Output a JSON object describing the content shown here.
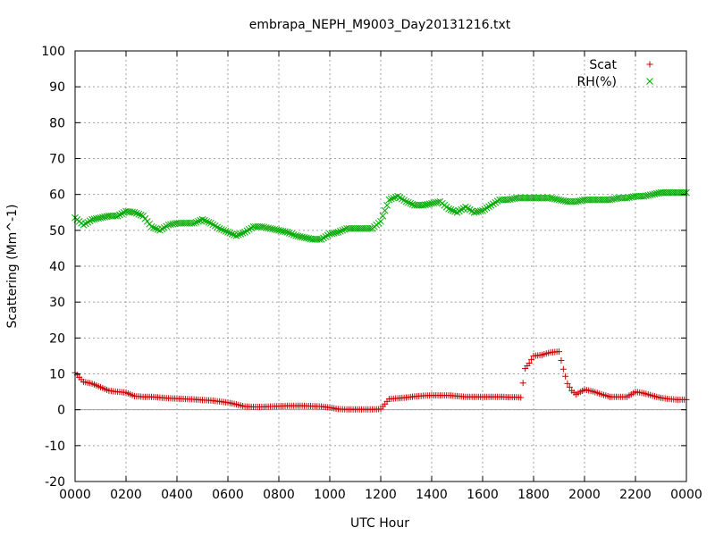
{
  "chart_data": {
    "type": "scatter",
    "title": "embrapa_NEPH_M9003_Day20131216.txt",
    "xlabel": "UTC Hour",
    "ylabel": "Scattering (Mm^-1)",
    "xlim": [
      0,
      24
    ],
    "ylim": [
      -20,
      100
    ],
    "x_ticks": [
      0,
      2,
      4,
      6,
      8,
      10,
      12,
      14,
      16,
      18,
      20,
      22,
      24
    ],
    "x_tick_labels": [
      "0000",
      "0200",
      "0400",
      "0600",
      "0800",
      "1000",
      "1200",
      "1400",
      "1600",
      "1800",
      "2000",
      "2200",
      "0000"
    ],
    "y_ticks": [
      -20,
      -10,
      0,
      10,
      20,
      30,
      40,
      50,
      60,
      70,
      80,
      90,
      100
    ],
    "grid": true,
    "zero_line": true,
    "legend_position": "top-right",
    "series": [
      {
        "name": "Scat",
        "marker": "plus",
        "color": "#cc0000",
        "x": [
          0,
          0.33,
          0.67,
          1,
          1.33,
          1.67,
          2,
          2.33,
          2.67,
          3,
          3.33,
          3.67,
          4,
          4.33,
          4.67,
          5,
          5.33,
          5.67,
          6,
          6.33,
          6.67,
          7,
          7.33,
          7.67,
          8,
          8.33,
          8.67,
          9,
          9.33,
          9.67,
          10,
          10.33,
          10.67,
          11,
          11.33,
          11.67,
          12,
          12.33,
          12.67,
          13,
          13.33,
          13.67,
          14,
          14.33,
          14.67,
          15,
          15.33,
          15.67,
          16,
          16.33,
          16.67,
          17,
          17.33,
          17.5,
          17.67,
          17.83,
          18,
          18.33,
          18.67,
          19,
          19.17,
          19.33,
          19.5,
          19.67,
          20,
          20.33,
          20.67,
          21,
          21.33,
          21.67,
          22,
          22.33,
          22.67,
          23,
          23.33,
          23.67,
          24
        ],
        "y": [
          10.3,
          7.8,
          7.3,
          6.3,
          5.3,
          5,
          4.8,
          3.8,
          3.6,
          3.6,
          3.4,
          3.2,
          3.1,
          3,
          2.9,
          2.7,
          2.6,
          2.3,
          2,
          1.5,
          0.9,
          0.8,
          0.8,
          0.9,
          1,
          1.1,
          1.1,
          1.1,
          1,
          0.9,
          0.6,
          0.2,
          0.1,
          0.1,
          0.1,
          0.1,
          0.2,
          3,
          3.2,
          3.4,
          3.7,
          3.9,
          4,
          4,
          4,
          3.8,
          3.6,
          3.6,
          3.6,
          3.6,
          3.6,
          3.5,
          3.5,
          3.4,
          11.5,
          13,
          15,
          15.3,
          16,
          16.2,
          11.3,
          7.3,
          5.3,
          4.3,
          5.6,
          5.1,
          4.3,
          3.6,
          3.6,
          3.6,
          5,
          4.6,
          3.9,
          3.3,
          3,
          2.8,
          2.8
        ]
      },
      {
        "name": "RH(%)",
        "marker": "cross",
        "color": "#00aa00",
        "x": [
          0,
          0.33,
          0.67,
          1,
          1.33,
          1.67,
          2,
          2.33,
          2.67,
          3,
          3.33,
          3.67,
          4,
          4.33,
          4.67,
          5,
          5.33,
          5.67,
          6,
          6.33,
          6.67,
          7,
          7.33,
          7.67,
          8,
          8.33,
          8.67,
          9,
          9.33,
          9.67,
          10,
          10.33,
          10.67,
          11,
          11.33,
          11.67,
          12,
          12.33,
          12.67,
          13,
          13.33,
          13.67,
          14,
          14.33,
          14.67,
          15,
          15.33,
          15.67,
          16,
          16.33,
          16.67,
          17,
          17.33,
          17.67,
          18,
          18.33,
          18.67,
          19,
          19.33,
          19.67,
          20,
          20.33,
          20.67,
          21,
          21.33,
          21.67,
          22,
          22.33,
          22.67,
          23,
          23.33,
          23.67,
          24
        ],
        "y": [
          53.5,
          51.5,
          53,
          53.5,
          54,
          54,
          55.3,
          55,
          54,
          51,
          50,
          51.5,
          52,
          52,
          52,
          53,
          52,
          50.5,
          49.5,
          48.5,
          49.5,
          51,
          51,
          50.5,
          50,
          49.5,
          48.5,
          48,
          47.5,
          47.5,
          49,
          49.5,
          50.5,
          50.5,
          50.5,
          50.5,
          52.5,
          58.5,
          59.5,
          58,
          57,
          57,
          57.5,
          58,
          56,
          55,
          56.5,
          55,
          55.5,
          57,
          58.5,
          58.5,
          59,
          59,
          59,
          59,
          59,
          58.5,
          58,
          58,
          58.5,
          58.5,
          58.5,
          58.5,
          59,
          59,
          59.5,
          59.5,
          60,
          60.5,
          60.5,
          60.5,
          60.5
        ]
      }
    ]
  }
}
